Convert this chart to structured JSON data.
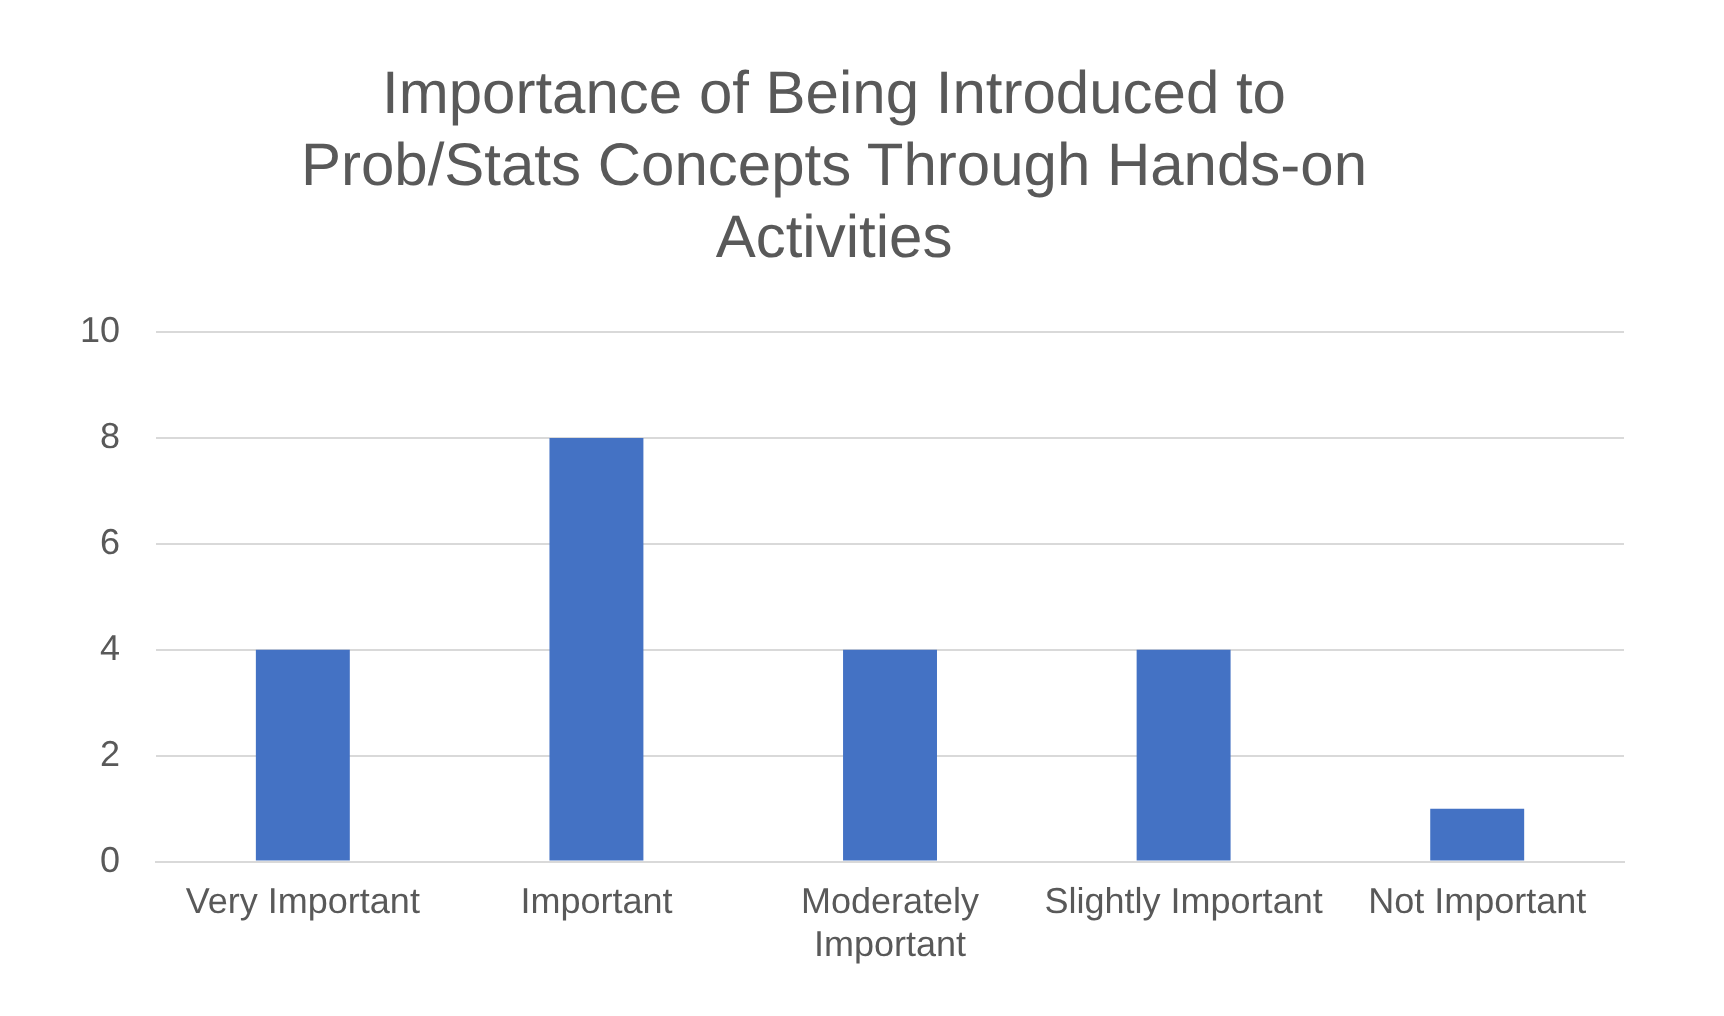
{
  "chart_data": {
    "type": "bar",
    "title": "Importance of Being Introduced to Prob/Stats Concepts Through Hands-on Activities",
    "categories": [
      "Very Important",
      "Important",
      "Moderately Important",
      "Slightly Important",
      "Not Important"
    ],
    "values": [
      4,
      8,
      4,
      4,
      1
    ],
    "color": "#4472c4",
    "ylim": [
      0,
      10
    ],
    "yticks": [
      0,
      2,
      4,
      6,
      8,
      10
    ],
    "grid": "y",
    "legend": false
  }
}
